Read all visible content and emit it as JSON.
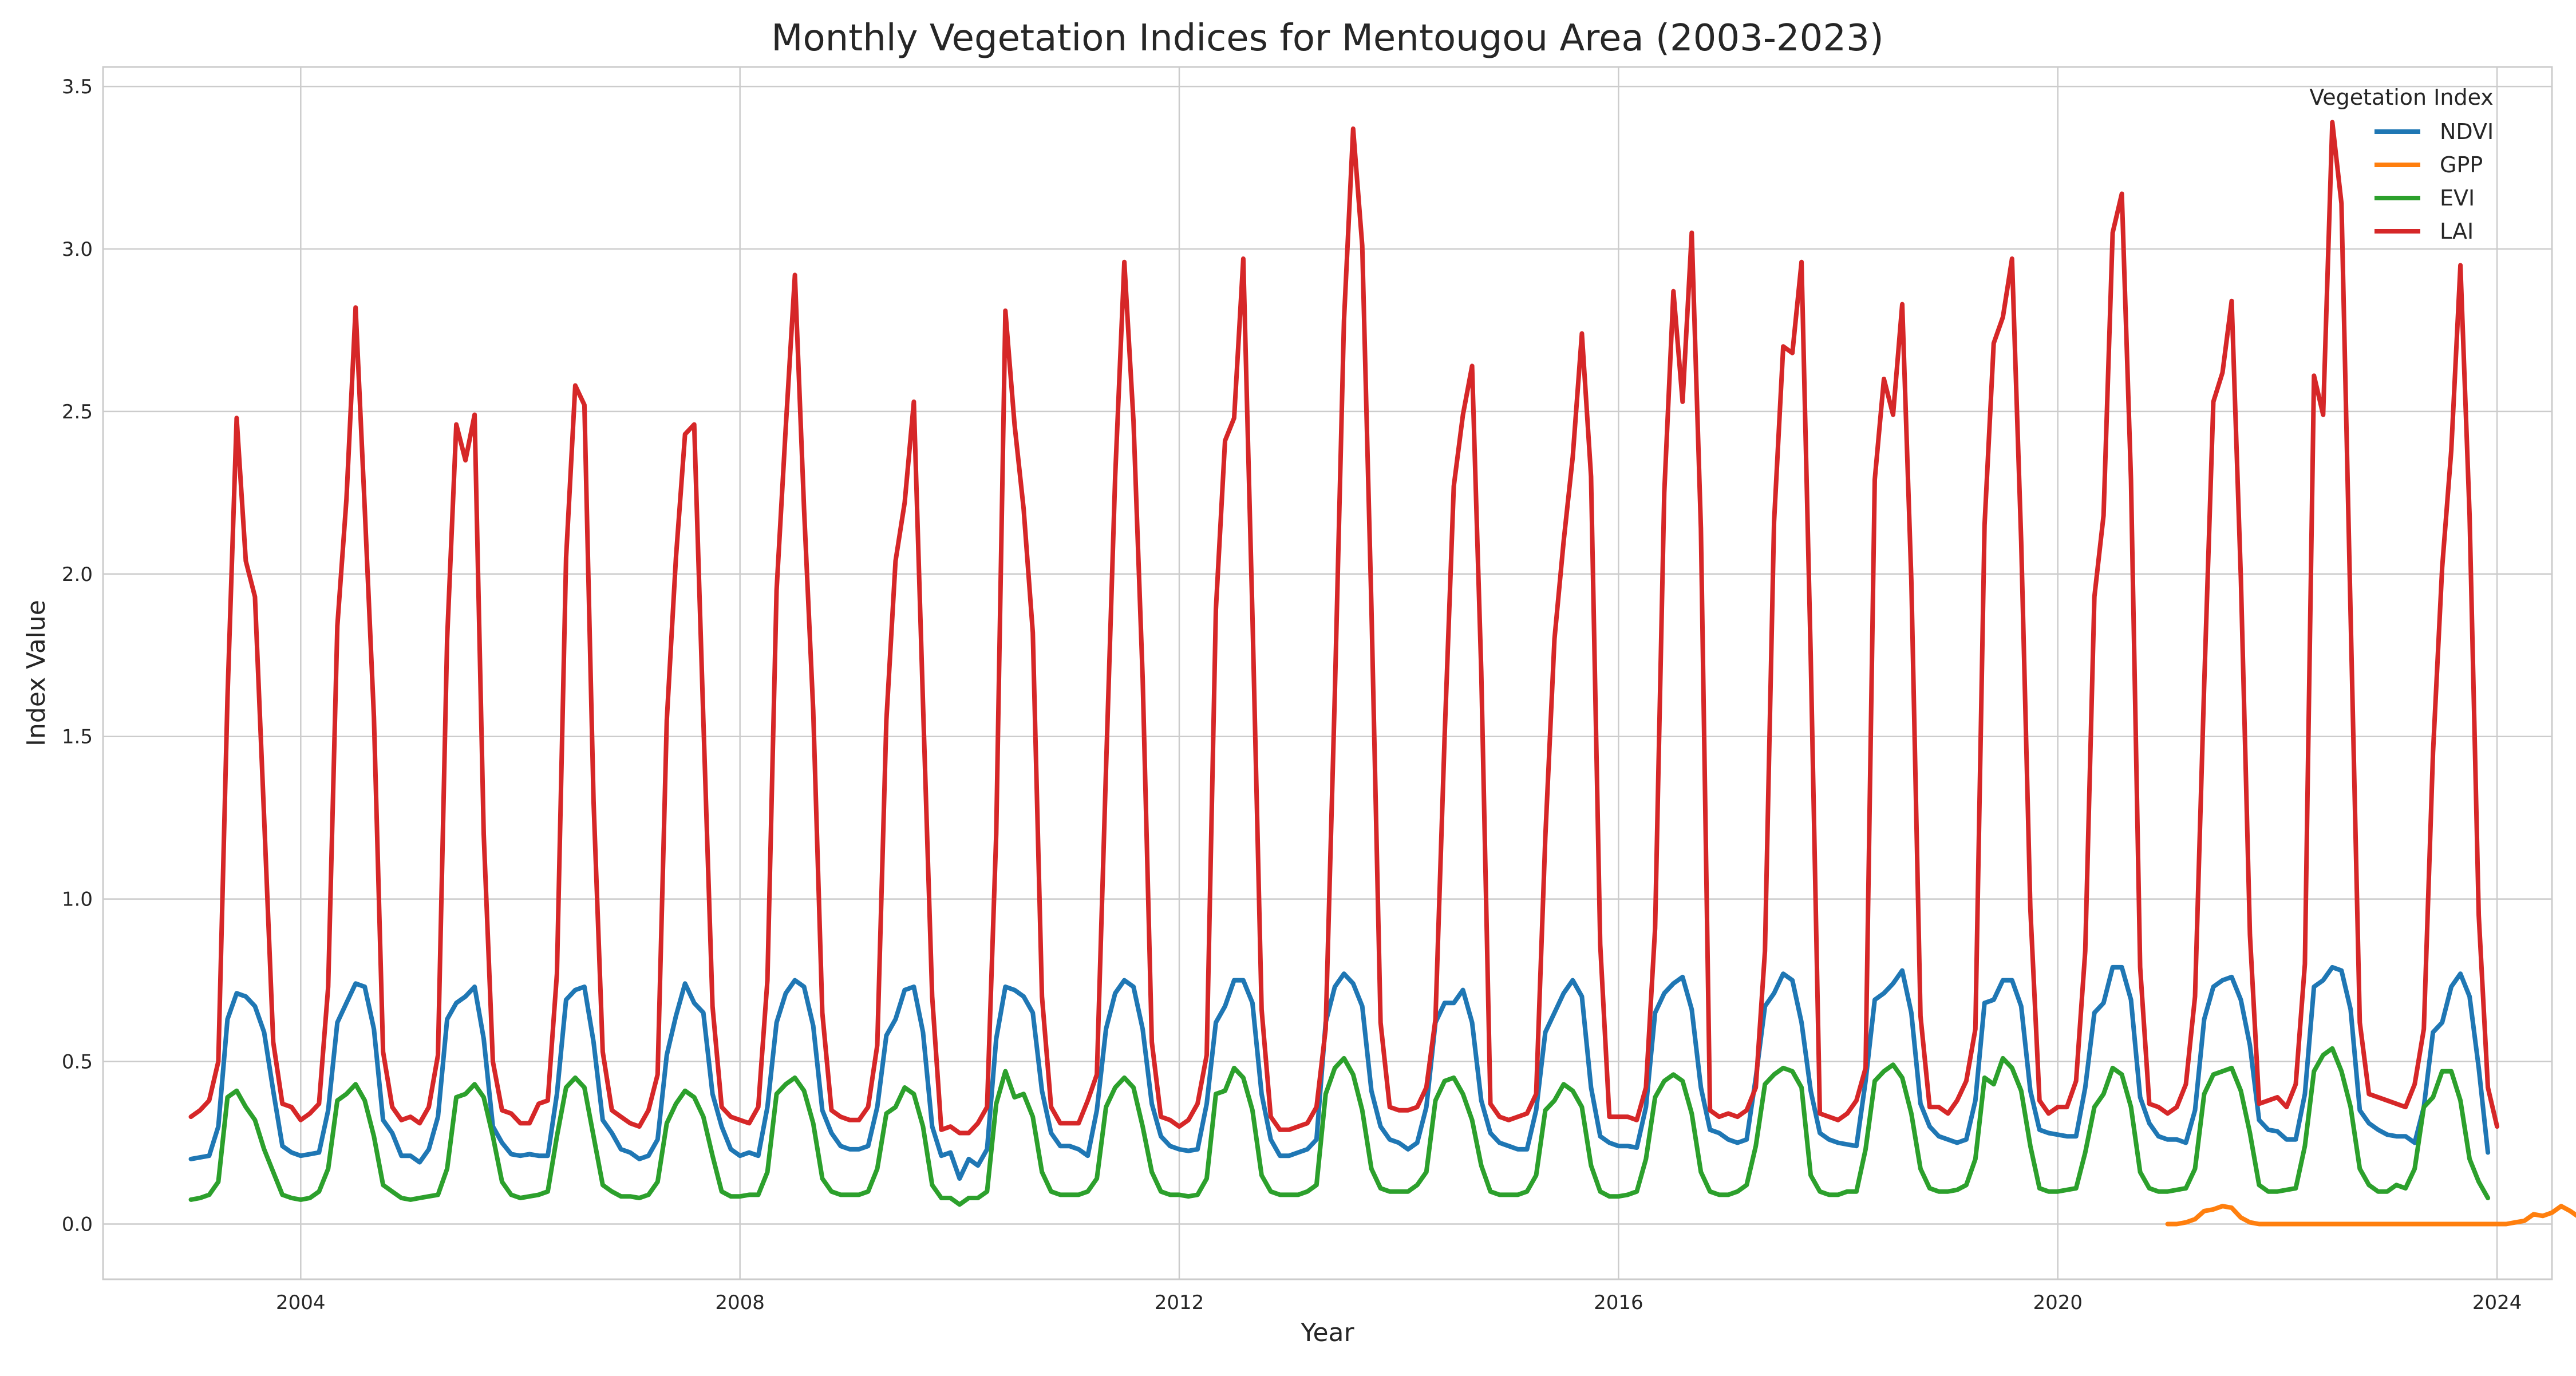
{
  "chart_data": {
    "type": "line",
    "title": "Monthly Vegetation Indices for Mentougou Area (2003-2023)",
    "xlabel": "Year",
    "ylabel": "Index Value",
    "xlim": [
      2002.2,
      2024.5
    ],
    "ylim": [
      -0.17,
      3.56
    ],
    "xticks": [
      2004,
      2008,
      2012,
      2016,
      2020,
      2024
    ],
    "yticks": [
      0.0,
      0.5,
      1.0,
      1.5,
      2.0,
      2.5,
      3.0,
      3.5
    ],
    "ytick_labels": [
      "0.0",
      "0.5",
      "1.0",
      "1.5",
      "2.0",
      "2.5",
      "3.0",
      "3.5"
    ],
    "grid": true,
    "legend": {
      "title": "Vegetation Index",
      "placement": "top-right"
    },
    "x_start_year": 2003,
    "series": [
      {
        "name": "NDVI",
        "color": "#1f77b4",
        "values": [
          0.2,
          0.205,
          0.21,
          0.3,
          0.63,
          0.71,
          0.7,
          0.67,
          0.59,
          0.41,
          0.24,
          0.22,
          0.21,
          0.215,
          0.22,
          0.35,
          0.62,
          0.68,
          0.74,
          0.73,
          0.6,
          0.32,
          0.28,
          0.21,
          0.21,
          0.19,
          0.23,
          0.33,
          0.63,
          0.68,
          0.7,
          0.73,
          0.57,
          0.3,
          0.25,
          0.215,
          0.21,
          0.215,
          0.21,
          0.21,
          0.4,
          0.69,
          0.72,
          0.73,
          0.56,
          0.32,
          0.28,
          0.23,
          0.22,
          0.2,
          0.21,
          0.26,
          0.52,
          0.64,
          0.74,
          0.68,
          0.65,
          0.4,
          0.3,
          0.23,
          0.21,
          0.22,
          0.21,
          0.36,
          0.62,
          0.71,
          0.75,
          0.73,
          0.61,
          0.35,
          0.28,
          0.24,
          0.23,
          0.23,
          0.24,
          0.36,
          0.58,
          0.63,
          0.72,
          0.73,
          0.59,
          0.3,
          0.21,
          0.22,
          0.14,
          0.2,
          0.18,
          0.23,
          0.57,
          0.73,
          0.72,
          0.7,
          0.65,
          0.41,
          0.28,
          0.24,
          0.24,
          0.23,
          0.21,
          0.35,
          0.6,
          0.71,
          0.75,
          0.73,
          0.6,
          0.37,
          0.27,
          0.24,
          0.23,
          0.225,
          0.23,
          0.37,
          0.62,
          0.67,
          0.75,
          0.75,
          0.68,
          0.4,
          0.26,
          0.21,
          0.21,
          0.22,
          0.23,
          0.26,
          0.62,
          0.73,
          0.77,
          0.74,
          0.67,
          0.41,
          0.3,
          0.26,
          0.25,
          0.23,
          0.25,
          0.36,
          0.62,
          0.68,
          0.68,
          0.72,
          0.62,
          0.38,
          0.28,
          0.25,
          0.24,
          0.23,
          0.23,
          0.35,
          0.59,
          0.65,
          0.71,
          0.75,
          0.7,
          0.42,
          0.27,
          0.25,
          0.24,
          0.24,
          0.235,
          0.36,
          0.65,
          0.71,
          0.74,
          0.76,
          0.66,
          0.42,
          0.29,
          0.28,
          0.26,
          0.25,
          0.26,
          0.45,
          0.67,
          0.71,
          0.77,
          0.75,
          0.62,
          0.41,
          0.28,
          0.26,
          0.25,
          0.245,
          0.24,
          0.44,
          0.69,
          0.71,
          0.74,
          0.78,
          0.65,
          0.37,
          0.3,
          0.27,
          0.26,
          0.25,
          0.26,
          0.38,
          0.68,
          0.69,
          0.75,
          0.75,
          0.67,
          0.41,
          0.29,
          0.28,
          0.275,
          0.27,
          0.27,
          0.42,
          0.65,
          0.68,
          0.79,
          0.79,
          0.69,
          0.39,
          0.31,
          0.27,
          0.26,
          0.26,
          0.25,
          0.35,
          0.63,
          0.73,
          0.75,
          0.76,
          0.69,
          0.55,
          0.32,
          0.29,
          0.285,
          0.26,
          0.26,
          0.4,
          0.73,
          0.75,
          0.79,
          0.78,
          0.66,
          0.35,
          0.31,
          0.29,
          0.275,
          0.27,
          0.27,
          0.25,
          0.36,
          0.59,
          0.62,
          0.73,
          0.77,
          0.7,
          0.48,
          0.22
        ]
      },
      {
        "name": "GPP",
        "color": "#ff7f0e",
        "start_index": 216,
        "values": [
          0.0,
          0.0,
          0.005,
          0.015,
          0.04,
          0.045,
          0.055,
          0.05,
          0.02,
          0.005,
          0.0,
          0.0,
          0.0,
          0.0,
          0.0,
          0.0,
          0.0,
          0.0,
          0.0,
          0.0,
          0.0,
          0.0,
          0.0,
          0.0,
          0.0,
          0.0,
          0.0,
          0.0,
          0.0,
          0.0,
          0.0,
          0.0,
          0.0,
          0.0,
          0.0,
          0.0,
          0.0,
          0.0,
          0.005,
          0.01,
          0.03,
          0.025,
          0.035,
          0.055,
          0.04,
          0.02,
          0.005,
          0.0
        ]
      },
      {
        "name": "EVI",
        "color": "#2ca02c",
        "values": [
          0.075,
          0.08,
          0.09,
          0.13,
          0.39,
          0.41,
          0.36,
          0.32,
          0.23,
          0.16,
          0.09,
          0.08,
          0.075,
          0.08,
          0.1,
          0.17,
          0.38,
          0.4,
          0.43,
          0.38,
          0.27,
          0.12,
          0.1,
          0.08,
          0.075,
          0.08,
          0.085,
          0.09,
          0.17,
          0.39,
          0.4,
          0.43,
          0.39,
          0.27,
          0.13,
          0.09,
          0.08,
          0.085,
          0.09,
          0.1,
          0.27,
          0.42,
          0.45,
          0.42,
          0.27,
          0.12,
          0.1,
          0.085,
          0.085,
          0.08,
          0.09,
          0.13,
          0.31,
          0.37,
          0.41,
          0.39,
          0.33,
          0.21,
          0.1,
          0.085,
          0.085,
          0.09,
          0.09,
          0.16,
          0.4,
          0.43,
          0.45,
          0.41,
          0.31,
          0.14,
          0.1,
          0.09,
          0.09,
          0.09,
          0.1,
          0.17,
          0.34,
          0.36,
          0.42,
          0.4,
          0.3,
          0.12,
          0.08,
          0.08,
          0.06,
          0.08,
          0.08,
          0.1,
          0.37,
          0.47,
          0.39,
          0.4,
          0.33,
          0.16,
          0.1,
          0.09,
          0.09,
          0.09,
          0.1,
          0.14,
          0.36,
          0.42,
          0.45,
          0.42,
          0.3,
          0.16,
          0.1,
          0.09,
          0.09,
          0.085,
          0.09,
          0.14,
          0.4,
          0.41,
          0.48,
          0.45,
          0.35,
          0.15,
          0.1,
          0.09,
          0.09,
          0.09,
          0.1,
          0.12,
          0.4,
          0.48,
          0.51,
          0.46,
          0.35,
          0.17,
          0.11,
          0.1,
          0.1,
          0.1,
          0.12,
          0.16,
          0.38,
          0.44,
          0.45,
          0.4,
          0.32,
          0.18,
          0.1,
          0.09,
          0.09,
          0.09,
          0.1,
          0.15,
          0.35,
          0.38,
          0.43,
          0.41,
          0.36,
          0.18,
          0.1,
          0.085,
          0.085,
          0.09,
          0.1,
          0.2,
          0.39,
          0.44,
          0.46,
          0.44,
          0.34,
          0.16,
          0.1,
          0.09,
          0.09,
          0.1,
          0.12,
          0.24,
          0.43,
          0.46,
          0.48,
          0.47,
          0.42,
          0.15,
          0.1,
          0.09,
          0.09,
          0.1,
          0.1,
          0.23,
          0.44,
          0.47,
          0.49,
          0.45,
          0.34,
          0.17,
          0.11,
          0.1,
          0.1,
          0.105,
          0.12,
          0.2,
          0.45,
          0.43,
          0.51,
          0.48,
          0.41,
          0.24,
          0.11,
          0.1,
          0.1,
          0.105,
          0.11,
          0.22,
          0.36,
          0.4,
          0.48,
          0.46,
          0.36,
          0.16,
          0.11,
          0.1,
          0.1,
          0.105,
          0.11,
          0.17,
          0.4,
          0.46,
          0.47,
          0.48,
          0.41,
          0.28,
          0.12,
          0.1,
          0.1,
          0.105,
          0.11,
          0.24,
          0.47,
          0.52,
          0.54,
          0.47,
          0.36,
          0.17,
          0.12,
          0.1,
          0.1,
          0.12,
          0.11,
          0.17,
          0.36,
          0.39,
          0.47,
          0.47,
          0.38,
          0.2,
          0.13,
          0.08
        ]
      },
      {
        "name": "LAI",
        "color": "#d62728",
        "values": [
          0.33,
          0.35,
          0.38,
          0.5,
          1.62,
          2.48,
          2.04,
          1.93,
          1.25,
          0.56,
          0.37,
          0.36,
          0.32,
          0.34,
          0.37,
          0.73,
          1.84,
          2.23,
          2.82,
          2.2,
          1.56,
          0.53,
          0.36,
          0.32,
          0.33,
          0.31,
          0.36,
          0.52,
          1.8,
          2.46,
          2.35,
          2.49,
          1.2,
          0.5,
          0.35,
          0.34,
          0.31,
          0.31,
          0.37,
          0.38,
          0.77,
          2.05,
          2.58,
          2.52,
          1.3,
          0.53,
          0.35,
          0.33,
          0.31,
          0.3,
          0.35,
          0.46,
          1.55,
          2.05,
          2.43,
          2.46,
          1.55,
          0.67,
          0.36,
          0.33,
          0.32,
          0.31,
          0.36,
          0.75,
          1.95,
          2.45,
          2.92,
          2.2,
          1.58,
          0.65,
          0.35,
          0.33,
          0.32,
          0.32,
          0.36,
          0.55,
          1.55,
          2.04,
          2.22,
          2.53,
          1.6,
          0.7,
          0.29,
          0.3,
          0.28,
          0.28,
          0.31,
          0.36,
          1.2,
          2.81,
          2.46,
          2.2,
          1.82,
          0.7,
          0.36,
          0.31,
          0.31,
          0.31,
          0.38,
          0.46,
          1.4,
          2.3,
          2.96,
          2.47,
          1.68,
          0.56,
          0.33,
          0.32,
          0.3,
          0.32,
          0.37,
          0.52,
          1.89,
          2.41,
          2.48,
          2.97,
          1.87,
          0.66,
          0.33,
          0.29,
          0.29,
          0.3,
          0.31,
          0.36,
          0.6,
          1.63,
          2.78,
          3.37,
          3.01,
          1.9,
          0.62,
          0.36,
          0.35,
          0.35,
          0.36,
          0.42,
          0.63,
          1.5,
          2.27,
          2.49,
          2.64,
          1.7,
          0.37,
          0.33,
          0.32,
          0.33,
          0.34,
          0.4,
          1.19,
          1.8,
          2.1,
          2.36,
          2.74,
          2.3,
          0.86,
          0.33,
          0.33,
          0.33,
          0.32,
          0.42,
          0.91,
          2.25,
          2.87,
          2.53,
          3.05,
          2.14,
          0.35,
          0.33,
          0.34,
          0.33,
          0.35,
          0.42,
          0.84,
          2.16,
          2.7,
          2.68,
          2.96,
          1.75,
          0.34,
          0.33,
          0.32,
          0.34,
          0.38,
          0.48,
          2.29,
          2.6,
          2.49,
          2.83,
          1.98,
          0.64,
          0.36,
          0.36,
          0.34,
          0.38,
          0.44,
          0.6,
          2.15,
          2.71,
          2.79,
          2.97,
          2.1,
          0.97,
          0.38,
          0.34,
          0.36,
          0.36,
          0.44,
          0.84,
          1.93,
          2.18,
          3.05,
          3.17,
          2.29,
          0.79,
          0.37,
          0.36,
          0.34,
          0.36,
          0.43,
          0.7,
          1.66,
          2.53,
          2.62,
          2.84,
          1.99,
          0.89,
          0.37,
          0.38,
          0.39,
          0.36,
          0.43,
          0.8,
          2.61,
          2.49,
          3.39,
          3.14,
          1.87,
          0.62,
          0.4,
          0.39,
          0.38,
          0.37,
          0.36,
          0.43,
          0.6,
          1.45,
          2.02,
          2.38,
          2.95,
          2.18,
          0.95,
          0.42,
          0.3
        ]
      }
    ]
  }
}
